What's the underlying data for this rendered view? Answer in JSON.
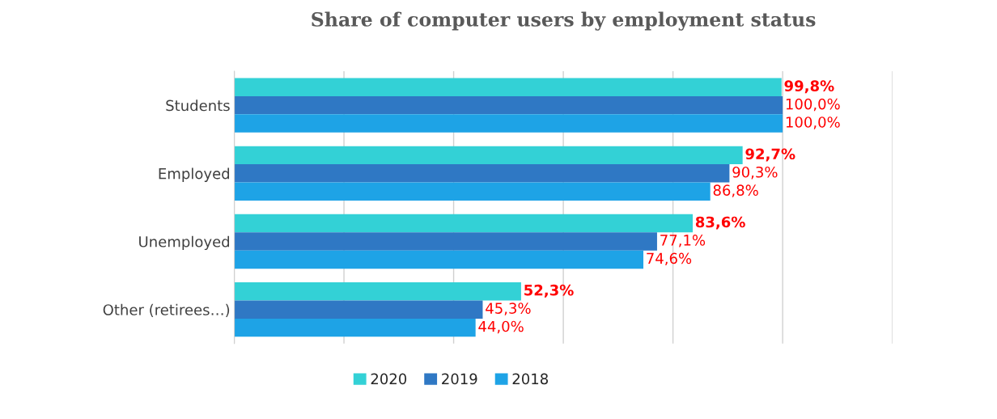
{
  "chart_data": {
    "type": "bar",
    "orientation": "horizontal",
    "title": "Share of computer users by employment status",
    "categories": [
      "Students",
      "Employed",
      "Unemployed",
      "Other (retirees…)"
    ],
    "series": [
      {
        "name": "2020",
        "color": "#33d1d6",
        "values": [
          99.8,
          92.7,
          83.6,
          52.3
        ],
        "value_labels": [
          "99,8%",
          "92,7%",
          "83,6%",
          "52,3%"
        ]
      },
      {
        "name": "2019",
        "color": "#2f78c4",
        "values": [
          100.0,
          90.3,
          77.1,
          45.3
        ],
        "value_labels": [
          "100,0%",
          "90,3%",
          "77,1%",
          "45,3%"
        ]
      },
      {
        "name": "2018",
        "color": "#1ea3e6",
        "values": [
          100.0,
          86.8,
          74.6,
          44.0
        ],
        "value_labels": [
          "100,0%",
          "86,8%",
          "74,6%",
          "44,0%"
        ]
      }
    ],
    "xlim": [
      0,
      120
    ],
    "xticks": [
      {
        "value": 0,
        "label": null
      },
      {
        "value": 20,
        "label": null
      },
      {
        "value": 40,
        "label": null
      },
      {
        "value": 60,
        "label": null
      },
      {
        "value": 80,
        "label": null
      },
      {
        "value": 100,
        "label": null
      },
      {
        "value": 120,
        "label": null
      }
    ],
    "tick_labels": "y",
    "grid": "x",
    "legend": "bottom"
  }
}
